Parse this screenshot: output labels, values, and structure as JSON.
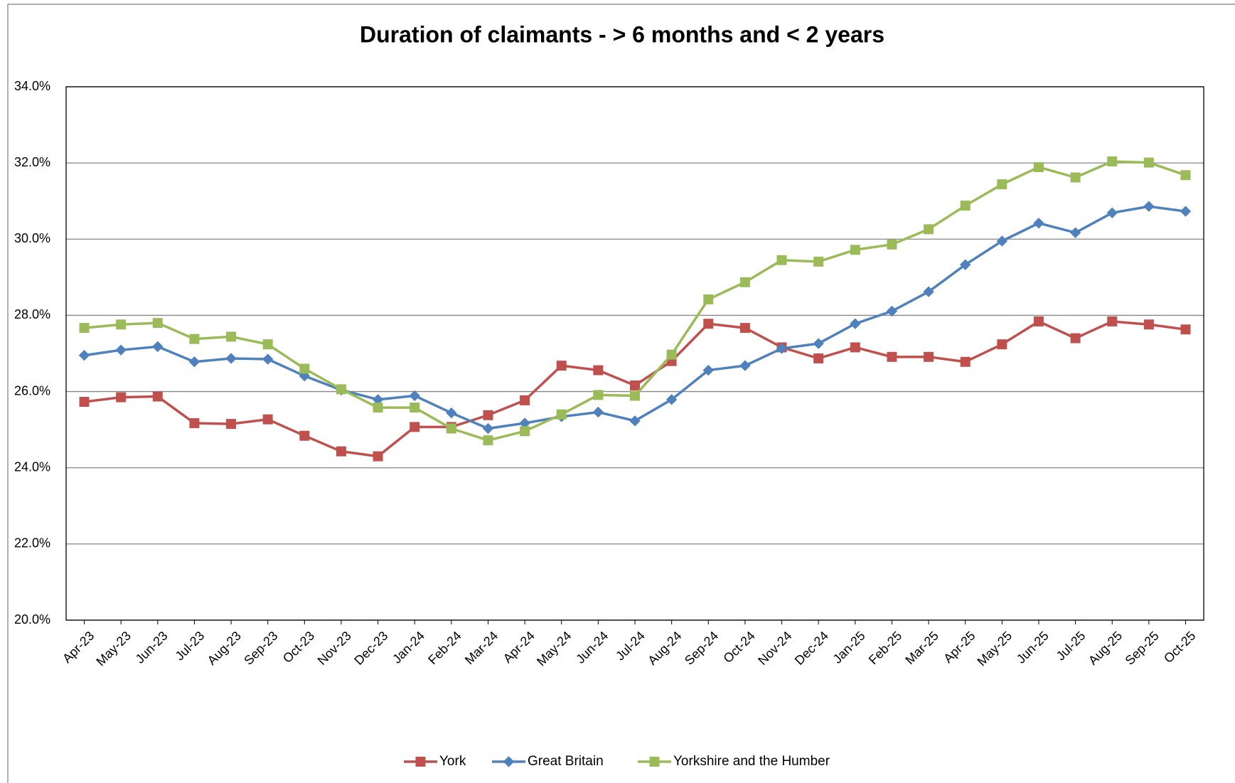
{
  "chart_data": {
    "type": "line",
    "title": "Duration of claimants - > 6 months and < 2 years",
    "categories": [
      "Apr-23",
      "May-23",
      "Jun-23",
      "Jul-23",
      "Aug-23",
      "Sep-23",
      "Oct-23",
      "Nov-23",
      "Dec-23",
      "Jan-24",
      "Feb-24",
      "Mar-24",
      "Apr-24",
      "May-24",
      "Jun-24",
      "Jul-24",
      "Aug-24",
      "Sep-24",
      "Oct-24",
      "Nov-24",
      "Dec-24",
      "Jan-25",
      "Feb-25",
      "Mar-25",
      "Apr-25",
      "May-25",
      "Jun-25",
      "Jul-25",
      "Aug-25",
      "Sep-25",
      "Oct-25"
    ],
    "series": [
      {
        "name": "York",
        "color": "#c0504d",
        "marker": "square",
        "values": [
          25.73,
          25.85,
          25.87,
          25.17,
          25.15,
          25.27,
          24.84,
          24.43,
          24.3,
          25.07,
          25.07,
          25.38,
          25.77,
          26.68,
          26.56,
          26.16,
          26.8,
          27.78,
          27.67,
          27.16,
          26.87,
          27.16,
          26.91,
          26.91,
          26.78,
          27.24,
          27.84,
          27.4,
          27.84,
          27.76,
          27.63
        ]
      },
      {
        "name": "Great Britain",
        "color": "#4f81bd",
        "marker": "diamond",
        "values": [
          26.95,
          27.09,
          27.18,
          26.78,
          26.87,
          26.85,
          26.41,
          26.04,
          25.79,
          25.89,
          25.44,
          25.03,
          25.17,
          25.34,
          25.46,
          25.23,
          25.79,
          26.56,
          26.68,
          27.13,
          27.26,
          27.78,
          28.11,
          28.62,
          29.33,
          29.95,
          30.42,
          30.17,
          30.69,
          30.86,
          30.73
        ]
      },
      {
        "name": "Yorkshire and the Humber",
        "color": "#9bbb59",
        "marker": "square",
        "values": [
          27.67,
          27.76,
          27.8,
          27.38,
          27.44,
          27.24,
          26.6,
          26.06,
          25.58,
          25.58,
          25.03,
          24.72,
          24.96,
          25.4,
          25.91,
          25.89,
          26.97,
          28.42,
          28.87,
          29.45,
          29.41,
          29.72,
          29.86,
          30.26,
          30.88,
          31.44,
          31.89,
          31.62,
          32.04,
          32.01,
          31.68
        ]
      }
    ],
    "ylim": [
      20,
      34
    ],
    "yticks": [
      {
        "value": 20,
        "label": "20.0%"
      },
      {
        "value": 22,
        "label": "22.0%"
      },
      {
        "value": 24,
        "label": "24.0%"
      },
      {
        "value": 26,
        "label": "26.0%"
      },
      {
        "value": 28,
        "label": "28.0%"
      },
      {
        "value": 30,
        "label": "30.0%"
      },
      {
        "value": 32,
        "label": "32.0%"
      },
      {
        "value": 34,
        "label": "34.0%"
      }
    ],
    "grid": true,
    "legend": "bottom"
  }
}
